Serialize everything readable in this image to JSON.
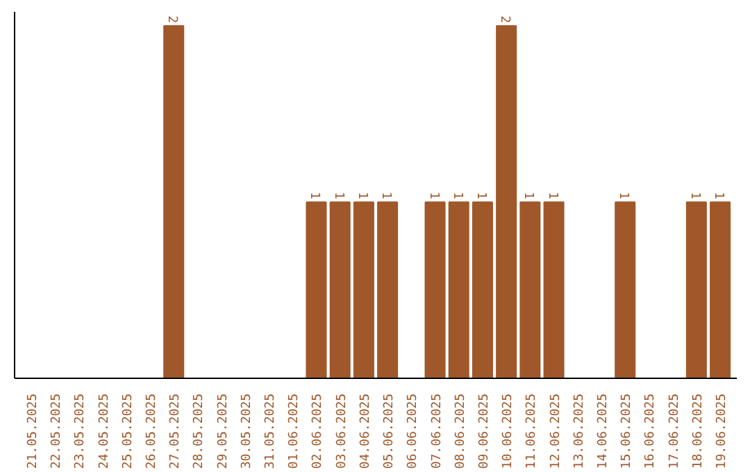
{
  "chart_data": {
    "type": "bar",
    "categories": [
      "21.05.2025",
      "22.05.2025",
      "23.05.2025",
      "24.05.2025",
      "25.05.2025",
      "26.05.2025",
      "27.05.2025",
      "28.05.2025",
      "29.05.2025",
      "30.05.2025",
      "31.05.2025",
      "01.06.2025",
      "02.06.2025",
      "03.06.2025",
      "04.06.2025",
      "05.06.2025",
      "06.06.2025",
      "07.06.2025",
      "08.06.2025",
      "09.06.2025",
      "10.06.2025",
      "11.06.2025",
      "12.06.2025",
      "13.06.2025",
      "14.06.2025",
      "15.06.2025",
      "16.06.2025",
      "17.06.2025",
      "18.06.2025",
      "19.06.2025"
    ],
    "values": [
      null,
      null,
      null,
      null,
      null,
      null,
      2,
      null,
      null,
      null,
      null,
      null,
      1,
      1,
      1,
      1,
      null,
      1,
      1,
      1,
      2,
      1,
      1,
      null,
      null,
      1,
      null,
      null,
      1,
      1
    ],
    "color": "#a0582a",
    "data_labels": true,
    "grid": false,
    "tick_labels": "x"
  }
}
